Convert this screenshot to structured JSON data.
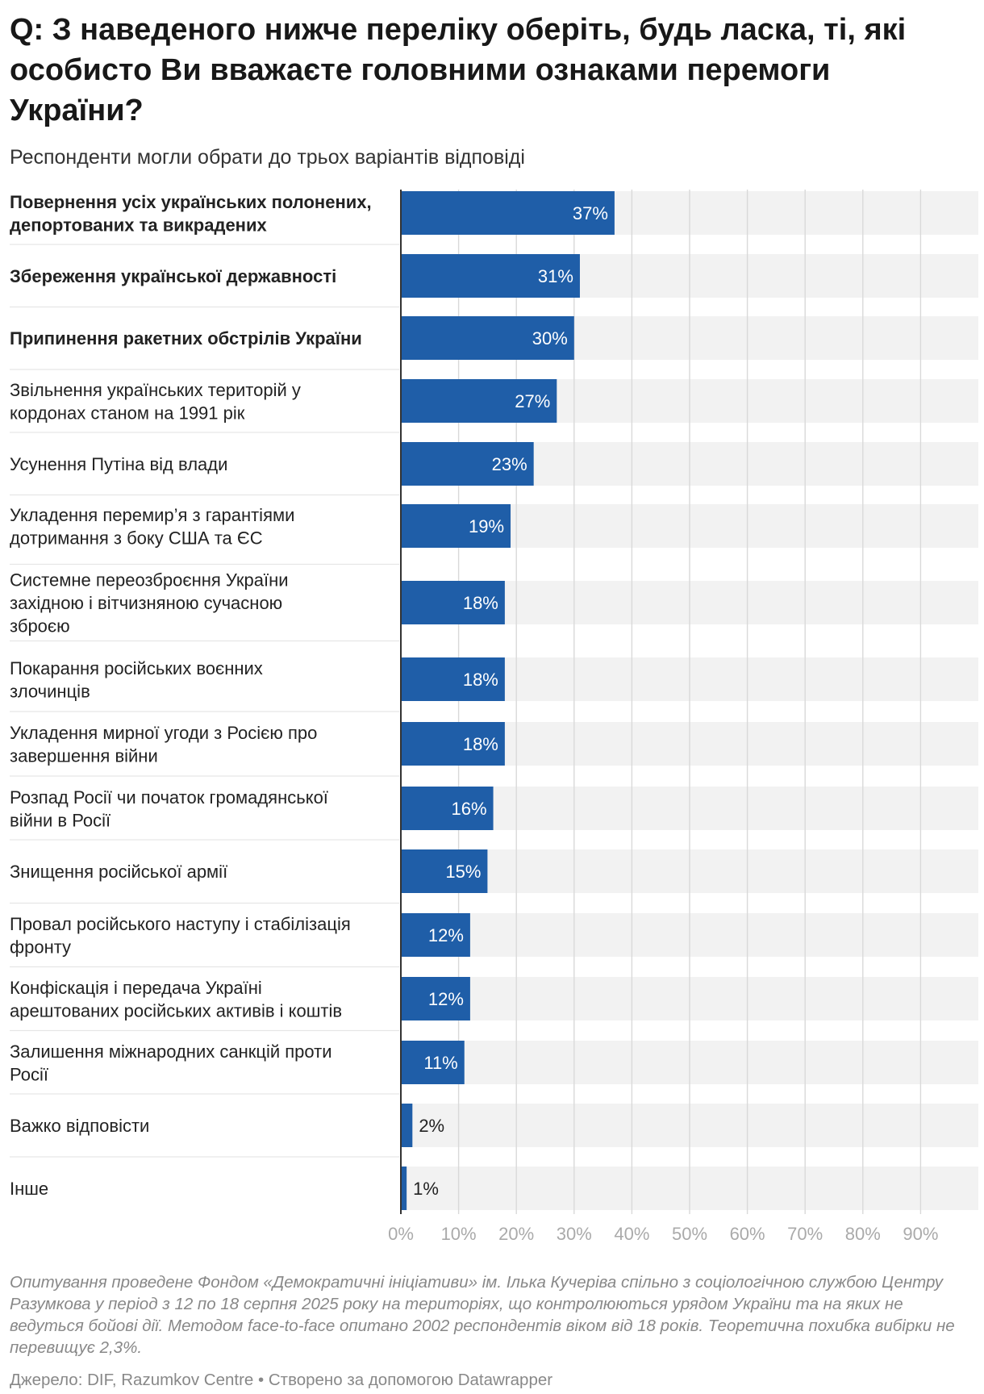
{
  "title": "Q: З наведеного нижче переліку оберіть, будь ласка, ті, які особисто Ви вважаєте головними ознаками перемоги України?",
  "subtitle": "Респонденти могли обрати до трьох варіантів відповіді",
  "notes": "Опитування проведене Фондом «Демократичні ініціативи» ім. Ілька Кучеріва спільно з соціологічною службою Центру Разумкова у період з 12 по 18 серпня 2025 року на територіях, що контролюються урядом України та на яких не ведуться бойові дії. Методом face-to-face опитано 2002 респондентів віком від 18 років. Теоретична похибка вибірки не перевищує 2,3%.",
  "source": "Джерело: DIF, Razumkov Centre • Створено за допомогою Datawrapper",
  "colors": {
    "bar": "#1f5ea8",
    "track": "#f2f2f2",
    "grid": "#d9d9d9",
    "tick_text": "#aaaaaa",
    "label_inside": "#ffffff",
    "label_outside": "#222222"
  },
  "chart_data": {
    "type": "bar",
    "orientation": "horizontal",
    "categories": [
      "Повернення усіх українських полонених, депортованих та викрадених",
      "Збереження української державності",
      "Припинення ракетних обстрілів України",
      "Звільнення українських територій у кордонах станом на 1991 рік",
      "Усунення Путіна від влади",
      "Укладення перемир’я з гарантіями дотримання з боку США та ЄС",
      "Системне переозброєння України західною і вітчизняною сучасною зброєю",
      "Покарання російських воєнних злочинців",
      "Укладення мирної угоди з Росією про завершення війни",
      "Розпад Росії чи початок громадянської війни в Росії",
      "Знищення російської армії",
      "Провал російського наступу і стабілізація фронту",
      "Конфіскація і передача Україні арештованих російських активів і коштів",
      "Залишення міжнародних санкцій проти Росії",
      "Важко відповісти",
      "Інше"
    ],
    "label_lines": [
      [
        "Повернення усіх українських полонених,",
        "депортованих та викрадених"
      ],
      [
        "Збереження української державності"
      ],
      [
        "Припинення ракетних обстрілів України"
      ],
      [
        "Звільнення українських територій у",
        "кордонах станом на 1991 рік"
      ],
      [
        "Усунення Путіна від влади"
      ],
      [
        "Укладення перемир’я з гарантіями",
        "дотримання з боку США та ЄС"
      ],
      [
        "Системне переозброєння України",
        "західною і вітчизняною сучасною",
        "зброєю"
      ],
      [
        "Покарання російських воєнних",
        "злочинців"
      ],
      [
        "Укладення мирної угоди з Росією про",
        "завершення війни"
      ],
      [
        "Розпад Росії чи початок громадянської",
        "війни в Росії"
      ],
      [
        "Знищення російської армії"
      ],
      [
        "Провал російського наступу і стабілізація",
        "фронту"
      ],
      [
        "Конфіскація і передача Україні",
        "арештованих російських активів і коштів"
      ],
      [
        "Залишення міжнародних санкцій проти",
        "Росії"
      ],
      [
        "Важко відповісти"
      ],
      [
        "Інше"
      ]
    ],
    "bold": [
      true,
      true,
      true,
      false,
      false,
      false,
      false,
      false,
      false,
      false,
      false,
      false,
      false,
      false,
      false,
      false
    ],
    "values": [
      37,
      31,
      30,
      27,
      23,
      19,
      18,
      18,
      18,
      16,
      15,
      12,
      12,
      11,
      2,
      1
    ],
    "value_labels": [
      "37%",
      "31%",
      "30%",
      "27%",
      "23%",
      "19%",
      "18%",
      "18%",
      "18%",
      "16%",
      "15%",
      "12%",
      "12%",
      "11%",
      "2%",
      "1%"
    ],
    "xlim": [
      0,
      100
    ],
    "ticks": [
      0,
      10,
      20,
      30,
      40,
      50,
      60,
      70,
      80,
      90
    ],
    "tick_labels": [
      "0%",
      "10%",
      "20%",
      "30%",
      "40%",
      "50%",
      "60%",
      "70%",
      "80%",
      "90%"
    ],
    "grid": true,
    "background_track": true
  }
}
